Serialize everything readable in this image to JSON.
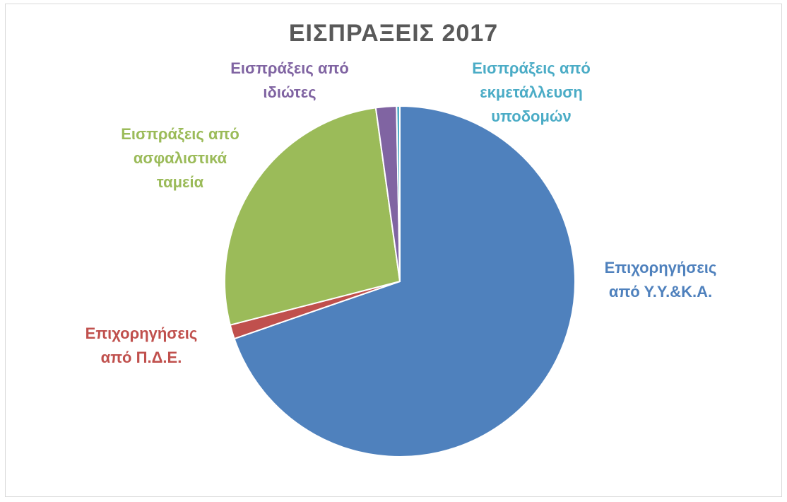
{
  "chart_data": {
    "type": "pie",
    "title": "ΕΙΣΠΡΑΞΕΙΣ 2017",
    "slices": [
      {
        "label": "Επιχορηγήσεις\nαπό Υ.Υ.&Κ.Α.",
        "value": 69.7,
        "color": "#4F81BD"
      },
      {
        "label": "Επιχορηγήσεις\nαπό Π.Δ.Ε.",
        "value": 1.3,
        "color": "#C0504D"
      },
      {
        "label": "Εισπράξεις από\nασφαλιστικά\nταμεία",
        "value": 26.8,
        "color": "#9BBB59"
      },
      {
        "label": "Εισπράξεις από\nιδιώτες",
        "value": 1.9,
        "color": "#8064A2"
      },
      {
        "label": "Εισπράξεις από\nεκμετάλλευση\nυποδομών",
        "value": 0.3,
        "color": "#4BACC6"
      }
    ],
    "legend": "none",
    "data_labels": "category names"
  }
}
